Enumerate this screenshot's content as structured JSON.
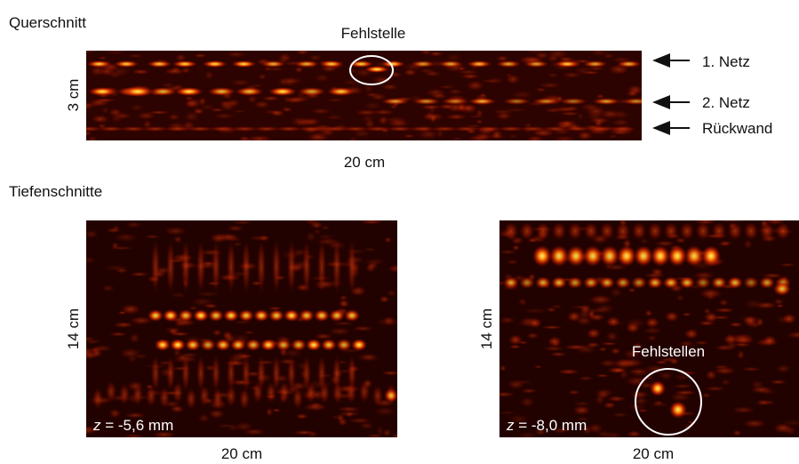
{
  "cross_section": {
    "title": "Querschnitt",
    "defect": "Fehlstelle",
    "height": "3 cm",
    "width": "20 cm",
    "layers": [
      "1. Netz",
      "2. Netz",
      "Rückwand"
    ]
  },
  "depth_sections": {
    "title": "Tiefenschnitte",
    "panels": [
      {
        "height": "14 cm",
        "width": "20 cm",
        "depth": {
          "variable": "z",
          "value": "= -5,6 mm"
        }
      },
      {
        "height": "14 cm",
        "width": "20 cm",
        "depth": {
          "variable": "z",
          "value": "= -8,0 mm"
        },
        "defects": "Fehlstellen"
      }
    ]
  }
}
